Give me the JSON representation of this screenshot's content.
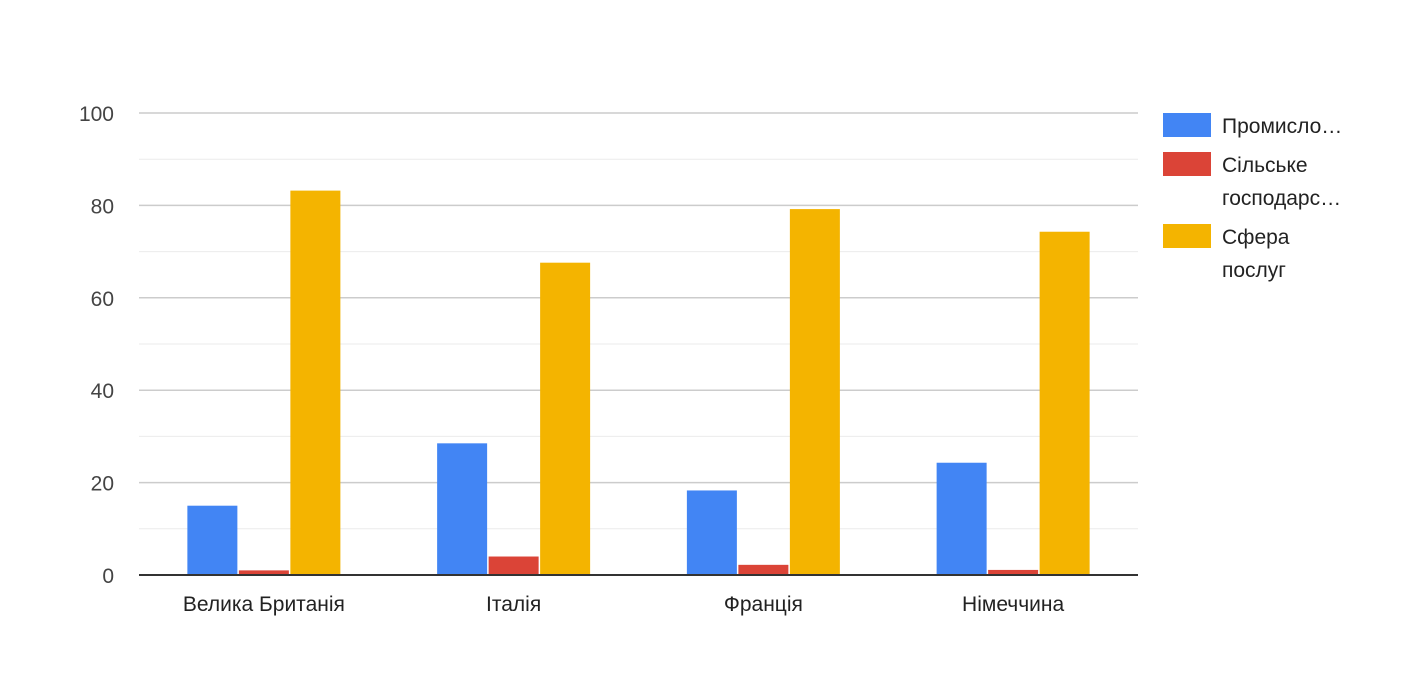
{
  "chart_data": {
    "type": "bar",
    "title": "",
    "xlabel": "",
    "ylabel": "",
    "ylim": [
      0,
      100
    ],
    "yticks": [
      0,
      20,
      40,
      60,
      80,
      100
    ],
    "grid": true,
    "legend_position": "right",
    "categories": [
      "Велика Британія",
      "Італія",
      "Франція",
      "Німеччина"
    ],
    "series": [
      {
        "name": "Промисловість",
        "legend_lines": [
          "Промисло…"
        ],
        "color": "#4285f4",
        "values": [
          15,
          28.5,
          18.3,
          24.3
        ]
      },
      {
        "name": "Сільське господарство",
        "legend_lines": [
          "Сільське",
          "господарс…"
        ],
        "color": "#db4437",
        "values": [
          1,
          4,
          2.2,
          1.1
        ]
      },
      {
        "name": "Сфера послуг",
        "legend_lines": [
          "Сфера",
          "послуг"
        ],
        "color": "#f4b400",
        "values": [
          83.2,
          67.6,
          79.2,
          74.3
        ]
      }
    ]
  }
}
